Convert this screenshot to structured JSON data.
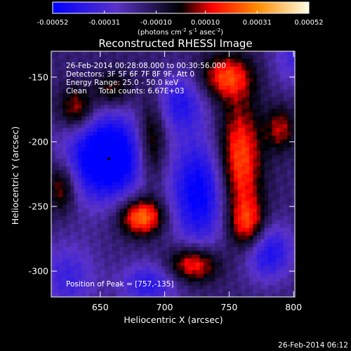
{
  "chart_data": {
    "type": "heatmap",
    "title": "Reconstructed RHESSI Image",
    "xlabel": "Heliocentric X (arcsec)",
    "ylabel": "Heliocentric Y (arcsec)",
    "xlim": [
      612,
      801
    ],
    "ylim": [
      -320,
      -130
    ],
    "xticks": [
      "650",
      "700",
      "750",
      "800"
    ],
    "yticks": [
      "-150",
      "-200",
      "-250",
      "-300"
    ],
    "colorbar": {
      "min": -0.00052,
      "max": 0.00052,
      "ticks": [
        "-0.00052",
        "-0.00031",
        "-0.00010",
        "0.00010",
        "0.00031",
        "0.00052"
      ],
      "unit_label": "(photons cm",
      "unit_sup1": "-2",
      "unit_mid": " s",
      "unit_sup2": "-1",
      "unit_end": " asec",
      "unit_sup3": "-2",
      "unit_close": ")",
      "colors": [
        "#0000ff",
        "#5a32c8",
        "#000000",
        "#ff0000",
        "#ff8c00",
        "#ffffe6"
      ]
    },
    "annotations": [
      "26-Feb-2014 00:28:08.000 to 00:30:56.000",
      "Detectors: 3F 5F 6F 7F 8F 9F, Att 0",
      "Energy Range: 25.0 - 50.0 keV",
      "Clean     Total counts: 6.67E+03"
    ],
    "peak_label": "Position of Peak = [757,-135]",
    "peak": [
      757,
      -135
    ],
    "sources": [
      {
        "x": 655,
        "y": -212,
        "sx": 22,
        "sy": 24,
        "v": -1.0
      },
      {
        "x": 727,
        "y": -240,
        "sx": 16,
        "sy": 30,
        "v": -0.75
      },
      {
        "x": 712,
        "y": -170,
        "sx": 14,
        "sy": 16,
        "v": -0.5
      },
      {
        "x": 780,
        "y": -285,
        "sx": 14,
        "sy": 16,
        "v": -0.6
      },
      {
        "x": 688,
        "y": -310,
        "sx": 16,
        "sy": 12,
        "v": -0.5
      },
      {
        "x": 625,
        "y": -305,
        "sx": 16,
        "sy": 20,
        "v": -0.4
      },
      {
        "x": 800,
        "y": -135,
        "sx": 12,
        "sy": 16,
        "v": -0.35
      },
      {
        "x": 682,
        "y": -258,
        "sx": 12,
        "sy": 10,
        "v": 0.85
      },
      {
        "x": 758,
        "y": -215,
        "sx": 12,
        "sy": 32,
        "v": 0.75
      },
      {
        "x": 748,
        "y": -150,
        "sx": 14,
        "sy": 12,
        "v": 0.65
      },
      {
        "x": 690,
        "y": -200,
        "sx": 8,
        "sy": 24,
        "v": 0.55
      },
      {
        "x": 632,
        "y": -175,
        "sx": 10,
        "sy": 12,
        "v": 0.55
      },
      {
        "x": 620,
        "y": -235,
        "sx": 8,
        "sy": 14,
        "v": 0.5
      },
      {
        "x": 722,
        "y": -295,
        "sx": 14,
        "sy": 10,
        "v": 0.7
      },
      {
        "x": 765,
        "y": -265,
        "sx": 10,
        "sy": 14,
        "v": 0.6
      },
      {
        "x": 660,
        "y": -160,
        "sx": 10,
        "sy": 10,
        "v": 0.4
      },
      {
        "x": 790,
        "y": -190,
        "sx": 8,
        "sy": 12,
        "v": 0.45
      }
    ],
    "grid": false
  },
  "footer": {
    "timestamp": "26-Feb-2014 06:12"
  }
}
